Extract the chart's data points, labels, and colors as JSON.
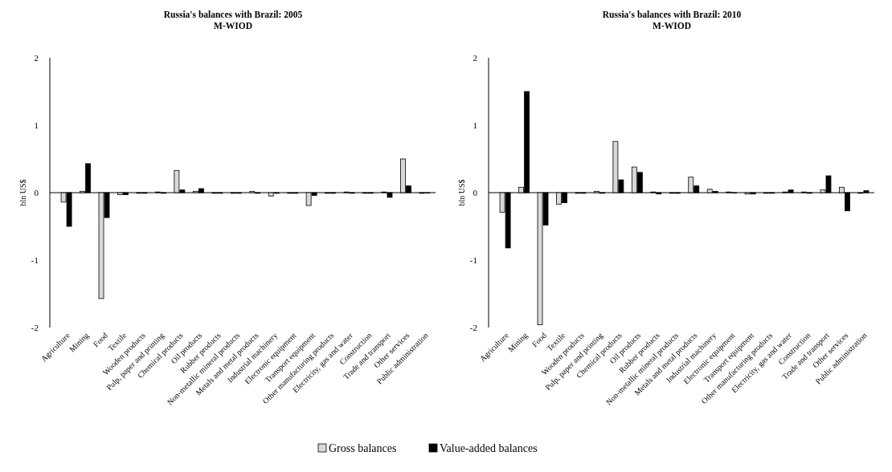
{
  "chart_data": [
    {
      "type": "bar",
      "title": "Russia's balances with Brazil: 2005",
      "subtitle": "M-WIOD",
      "ylabel": "bln US$",
      "categories": [
        "Agriculture",
        "Mining",
        "Food",
        "Textile",
        "Wooden products",
        "Pulp, paper and printing",
        "Chemical products",
        "Oil products",
        "Rubber products",
        "Non-metallic mineral products",
        "Metals and metal products",
        "Industrial machinery",
        "Electronic equipment",
        "Transport equipment",
        "Other manufacturing products",
        "Electricity, gas and water",
        "Construction",
        "Trade and transport",
        "Other services",
        "Public administration"
      ],
      "series": [
        {
          "name": "Gross balances",
          "color": "#d9d9d9",
          "values": [
            -0.14,
            0.02,
            -1.57,
            -0.03,
            -0.01,
            0.01,
            0.33,
            0.02,
            -0.01,
            -0.01,
            0.02,
            -0.05,
            -0.01,
            -0.19,
            -0.01,
            0.01,
            -0.01,
            0.01,
            0.5,
            -0.01
          ]
        },
        {
          "name": "Value-added balances",
          "color": "#000000",
          "values": [
            -0.5,
            0.43,
            -0.37,
            -0.03,
            -0.01,
            -0.01,
            0.04,
            0.06,
            -0.01,
            -0.01,
            -0.01,
            -0.01,
            -0.01,
            -0.04,
            -0.01,
            -0.01,
            -0.01,
            -0.07,
            0.1,
            0
          ]
        }
      ],
      "ylim": [
        -2,
        2
      ],
      "yticks": [
        -2,
        -1,
        0,
        1,
        2
      ],
      "legend": "bottom"
    },
    {
      "type": "bar",
      "title": "Russia's balances with Brazil: 2010",
      "subtitle": "M-WIOD",
      "ylabel": "bln US$",
      "categories": [
        "Agriculture",
        "Mining",
        "Food",
        "Textile",
        "Wooden products",
        "Pulp, paper and printing",
        "Chemical products",
        "Oil products",
        "Rubber products",
        "Non-metallic mineral products",
        "Metals and metal products",
        "Industrial machinery",
        "Electronic equipment",
        "Transport equipment",
        "Other manufacturing products",
        "Electricity, gas and water",
        "Construction",
        "Trade and transport",
        "Other services",
        "Public administration"
      ],
      "series": [
        {
          "color": "#d9d9d9",
          "values": [
            -0.29,
            0.08,
            -1.96,
            -0.17,
            -0.01,
            0.02,
            0.76,
            0.38,
            0.01,
            -0.01,
            0.23,
            0.05,
            0.01,
            -0.02,
            -0.01,
            0.01,
            0.01,
            0.04,
            0.08,
            -0.01
          ]
        },
        {
          "color": "#000000",
          "values": [
            -0.82,
            1.5,
            -0.48,
            -0.15,
            -0.01,
            -0.01,
            0.19,
            0.3,
            -0.02,
            -0.01,
            0.1,
            0.02,
            0,
            -0.02,
            -0.01,
            0.04,
            -0.01,
            0.25,
            -0.27,
            0.03
          ]
        }
      ],
      "ylim": [
        -2,
        2
      ],
      "yticks": [
        -2,
        -1,
        0,
        1,
        2
      ]
    }
  ]
}
